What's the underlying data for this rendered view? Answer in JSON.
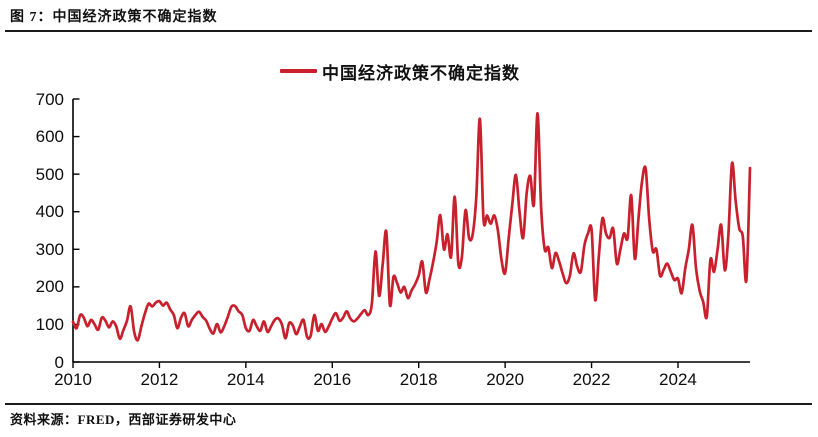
{
  "page": {
    "title": "图 7：中国经济政策不确定指数",
    "source_label": "资料来源：FRED，西部证券研发中心"
  },
  "legend": {
    "label": "中国经济政策不确定指数",
    "color": "#C8202C"
  },
  "chart_data": {
    "type": "line",
    "series_name": "中国经济政策不确定指数",
    "line_color": "#C8202C",
    "frequency": "monthly",
    "x_start": "2010-01",
    "x_end": "2025-09",
    "x_tick_labels": [
      "2010",
      "2012",
      "2014",
      "2016",
      "2018",
      "2020",
      "2022",
      "2024"
    ],
    "y_ticks": [
      0,
      100,
      200,
      300,
      400,
      500,
      600,
      700
    ],
    "ylim": [
      0,
      700
    ],
    "grid": false,
    "legend_position": "top-center",
    "values": [
      107,
      90,
      125,
      118,
      95,
      112,
      100,
      86,
      118,
      110,
      92,
      108,
      95,
      62,
      85,
      110,
      148,
      80,
      58,
      95,
      130,
      155,
      148,
      158,
      162,
      150,
      158,
      140,
      125,
      90,
      118,
      130,
      95,
      112,
      125,
      134,
      120,
      110,
      88,
      76,
      101,
      79,
      95,
      120,
      147,
      149,
      135,
      125,
      90,
      83,
      112,
      95,
      83,
      108,
      80,
      95,
      112,
      116,
      100,
      63,
      103,
      98,
      74,
      95,
      112,
      67,
      70,
      125,
      83,
      101,
      80,
      95,
      116,
      130,
      110,
      118,
      135,
      116,
      108,
      116,
      128,
      138,
      125,
      156,
      294,
      176,
      260,
      347,
      152,
      227,
      210,
      185,
      200,
      170,
      190,
      207,
      230,
      267,
      185,
      220,
      265,
      320,
      391,
      300,
      340,
      280,
      440,
      263,
      280,
      404,
      330,
      340,
      440,
      647,
      380,
      390,
      368,
      390,
      350,
      272,
      237,
      330,
      420,
      498,
      400,
      330,
      450,
      495,
      420,
      662,
      412,
      300,
      305,
      250,
      290,
      268,
      235,
      210,
      230,
      289,
      255,
      240,
      310,
      342,
      351,
      165,
      280,
      382,
      342,
      330,
      355,
      262,
      300,
      342,
      330,
      444,
      275,
      380,
      480,
      515,
      380,
      295,
      300,
      230,
      245,
      262,
      240,
      218,
      222,
      183,
      248,
      300,
      365,
      250,
      190,
      160,
      121,
      272,
      240,
      300,
      365,
      244,
      340,
      529,
      430,
      356,
      334,
      218,
      516
    ]
  }
}
